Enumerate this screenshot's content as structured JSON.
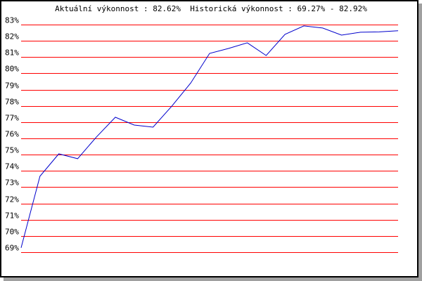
{
  "chart_data": {
    "type": "line",
    "title": "Aktuální výkonnost : 82.62%  Historická výkonnost : 69.27% - 82.92%",
    "xlabel": "",
    "ylabel": "",
    "ylim": [
      69,
      83
    ],
    "yticks": [
      69,
      70,
      71,
      72,
      73,
      74,
      75,
      76,
      77,
      78,
      79,
      80,
      81,
      82,
      83
    ],
    "ytick_labels": [
      "69%",
      "70%",
      "71%",
      "72%",
      "73%",
      "74%",
      "75%",
      "76%",
      "77%",
      "78%",
      "79%",
      "80%",
      "81%",
      "82%",
      "83%"
    ],
    "grid": true,
    "colors": {
      "grid": "#ff0000",
      "line": "#0000cc",
      "frame": "#000000",
      "shadow": "#a0a0a0"
    },
    "series": [
      {
        "values": [
          69.27,
          73.67,
          75.05,
          74.75,
          76.09,
          77.3,
          76.82,
          76.69,
          77.99,
          79.41,
          81.23,
          81.53,
          81.88,
          81.1,
          82.4,
          82.92,
          82.79,
          82.35,
          82.53,
          82.55,
          82.62
        ]
      }
    ]
  }
}
